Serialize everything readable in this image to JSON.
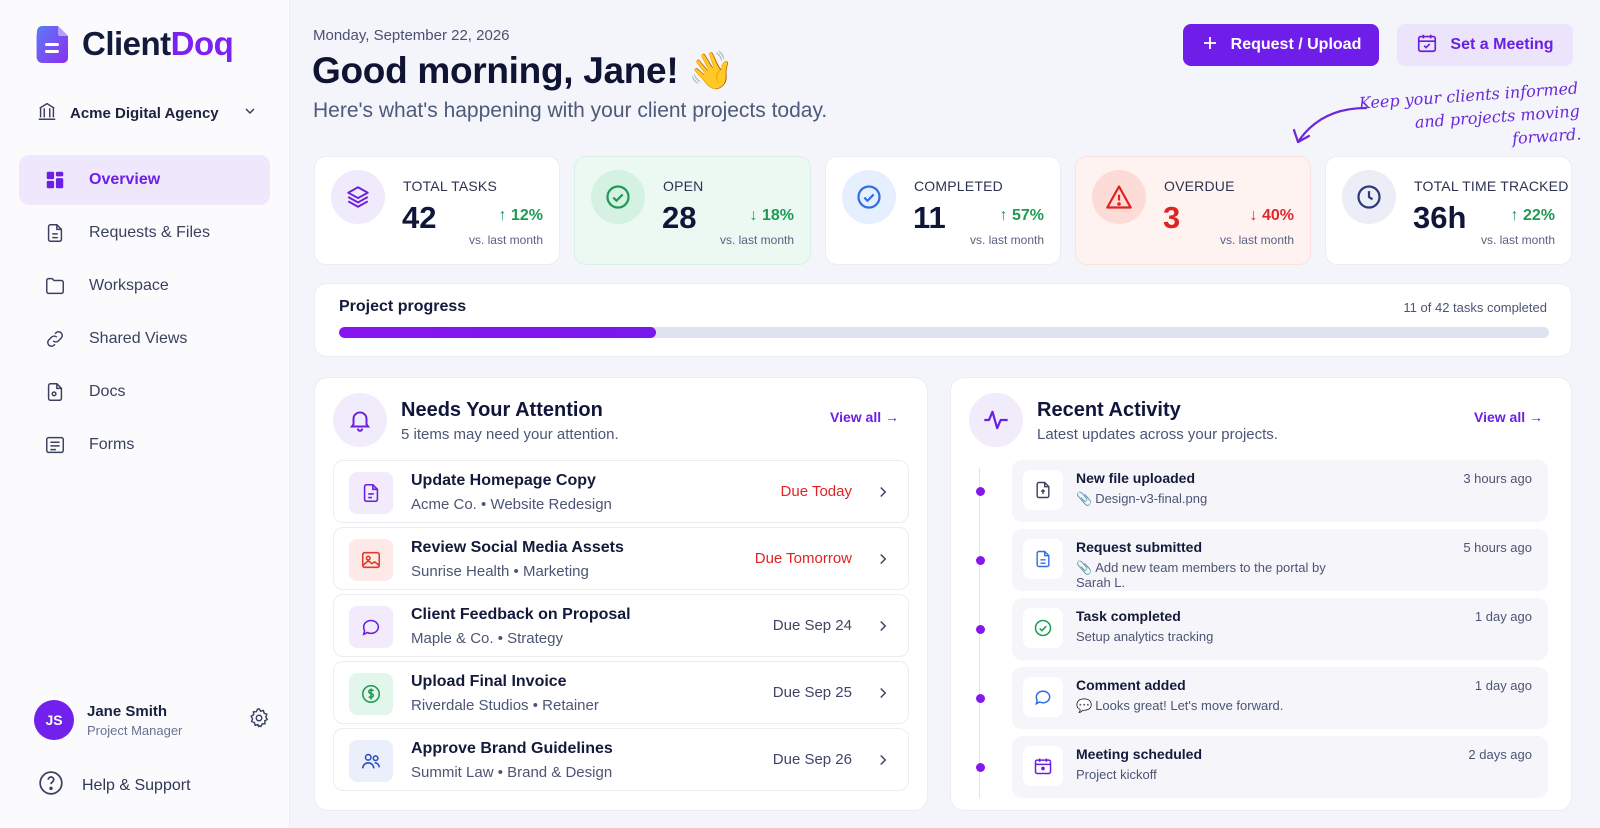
{
  "brand": {
    "name_part1": "Client",
    "name_part2": "Doq",
    "accent": "#7c22f0"
  },
  "workspace": {
    "name": "Acme Digital Agency"
  },
  "sidebar": {
    "items": [
      {
        "label": "Overview",
        "icon": "dashboard-icon",
        "active": true
      },
      {
        "label": "Requests & Files",
        "icon": "file-icon"
      },
      {
        "label": "Workspace",
        "icon": "folder-icon"
      },
      {
        "label": "Shared Views",
        "icon": "link-icon"
      },
      {
        "label": "Docs",
        "icon": "document-icon"
      },
      {
        "label": "Forms",
        "icon": "form-icon"
      }
    ]
  },
  "user": {
    "initials": "JS",
    "name": "Jane Smith",
    "role": "Project Manager"
  },
  "help": {
    "label": "Help & Support"
  },
  "header": {
    "date": "Monday, September 22, 2026",
    "greeting": "Good morning, Jane! 👋",
    "subtitle": "Here's what's happening with your client projects today.",
    "primary_button": "Request / Upload",
    "secondary_button": "Set a Meeting",
    "note_line1": "Keep your clients informed",
    "note_line2": "and projects moving forward."
  },
  "stats": [
    {
      "label": "TOTAL TASKS",
      "value": "42",
      "change": "↑ 12%",
      "note": "vs. last month",
      "icon": "layers-icon"
    },
    {
      "label": "OPEN",
      "value": "28",
      "change": "↓ 18%",
      "note": "vs. last month",
      "icon": "check-circle-icon"
    },
    {
      "label": "COMPLETED",
      "value": "11",
      "change": "↑ 57%",
      "note": "vs. last month",
      "icon": "check-badge-icon"
    },
    {
      "label": "OVERDUE",
      "value": "3",
      "change": "↓ 40%",
      "note": "vs. last month",
      "icon": "warning-icon"
    },
    {
      "label": "TOTAL TIME TRACKED",
      "value": "36h",
      "change": "↑ 22%",
      "note": "vs. last month",
      "icon": "clock-icon"
    }
  ],
  "progress": {
    "title": "Project progress",
    "meta": "11 of 42 tasks completed",
    "completed": 11,
    "total": 42
  },
  "attention": {
    "title": "Needs Your Attention",
    "subtitle": "5 items may need your attention.",
    "view_all": "View all →",
    "items": [
      {
        "title": "Update Homepage Copy",
        "sub": "Acme Co. • Website Redesign",
        "due": "Due Today",
        "urgent": true,
        "icon": "document-icon"
      },
      {
        "title": "Review Social Media Assets",
        "sub": "Sunrise Health • Marketing",
        "due": "Due Tomorrow",
        "urgent": true,
        "icon": "image-icon"
      },
      {
        "title": "Client Feedback on Proposal",
        "sub": "Maple & Co. • Strategy",
        "due": "Due Sep 24",
        "urgent": false,
        "icon": "chat-icon"
      },
      {
        "title": "Upload Final Invoice",
        "sub": "Riverdale Studios • Retainer",
        "due": "Due Sep 25",
        "urgent": false,
        "icon": "dollar-icon"
      },
      {
        "title": "Approve Brand Guidelines",
        "sub": "Summit Law • Brand & Design",
        "due": "Due Sep 26",
        "urgent": false,
        "icon": "users-icon"
      }
    ]
  },
  "activity": {
    "title": "Recent Activity",
    "subtitle": "Latest updates across your projects.",
    "view_all": "View all →",
    "items": [
      {
        "title": "New file uploaded",
        "sub": "Design-v3-final.png",
        "time": "3 hours ago",
        "icon": "file-upload-icon"
      },
      {
        "title": "Request submitted",
        "sub": "Add new team members to the portal by Sarah L.",
        "time": "5 hours ago",
        "icon": "request-icon"
      },
      {
        "title": "Task completed",
        "sub": "Setup analytics tracking",
        "time": "1 day ago",
        "icon": "check-circle-icon"
      },
      {
        "title": "Comment added",
        "sub": "Looks great! Let's move forward.",
        "time": "1 day ago",
        "icon": "chat-icon"
      },
      {
        "title": "Meeting scheduled",
        "sub": "Project kickoff",
        "time": "2 days ago",
        "icon": "calendar-icon"
      }
    ]
  }
}
